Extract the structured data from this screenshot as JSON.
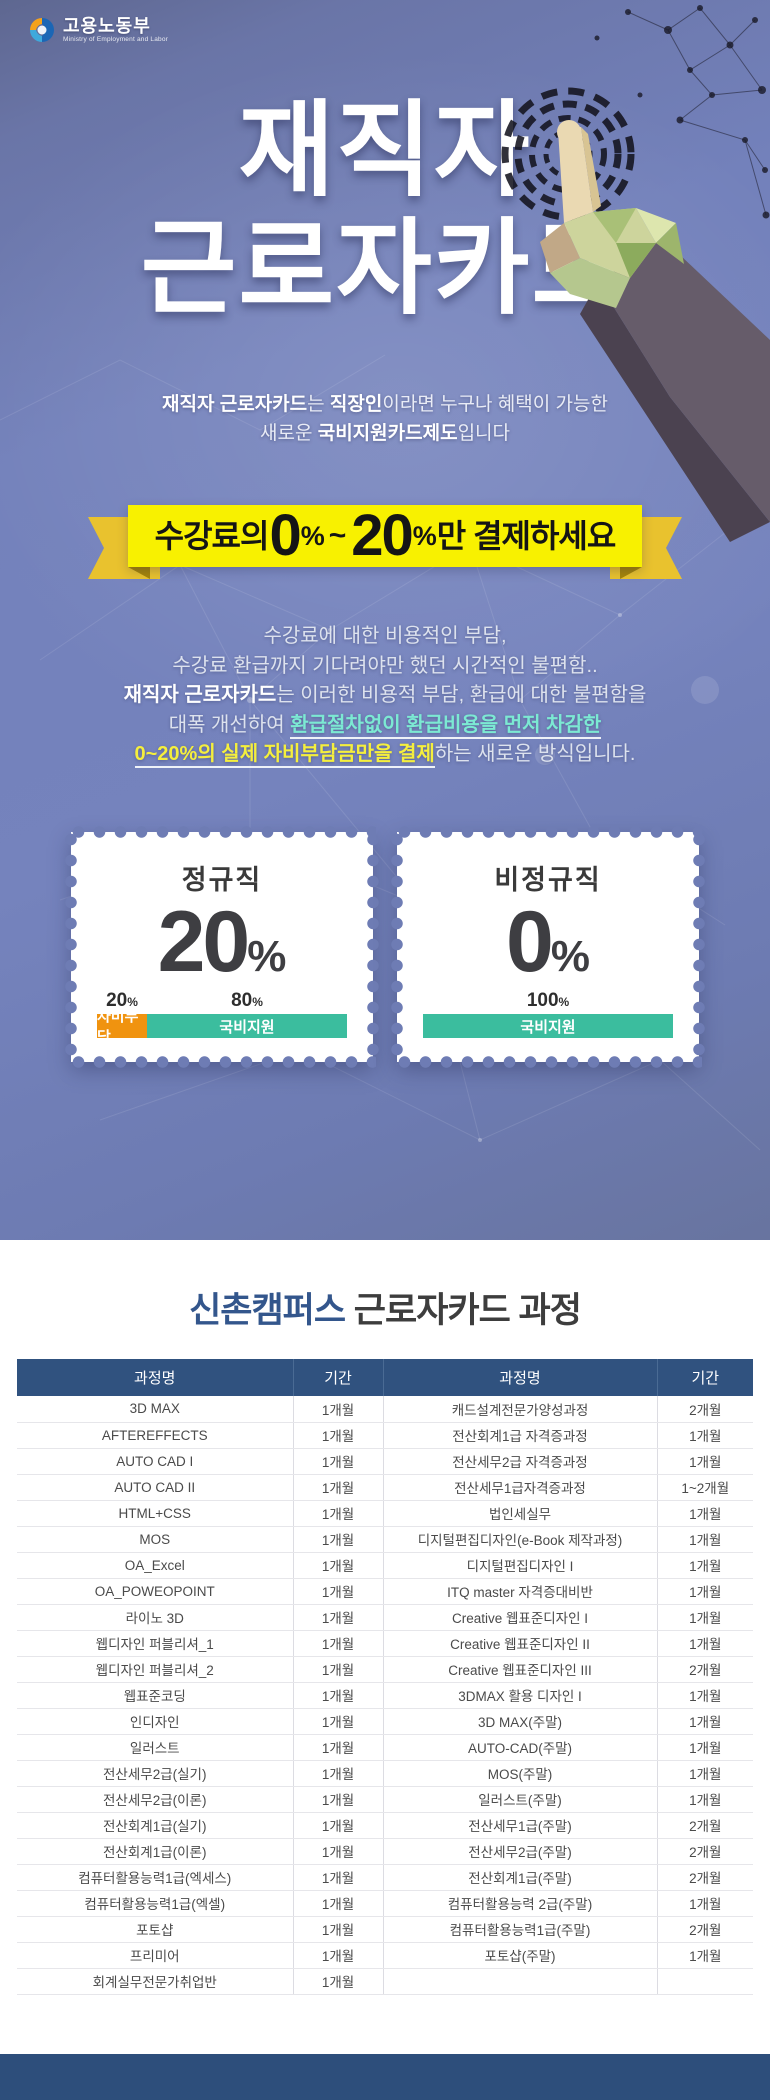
{
  "colors": {
    "hero_blue": "#7381bb",
    "ribbon_yellow": "#f8f100",
    "highlight_teal": "#7ce9d3",
    "highlight_yellow": "#f5ef3d",
    "bar_orange": "#f0930f",
    "bar_teal": "#3bbd9e",
    "table_header_navy": "#30527f",
    "footer_navy": "#2d4e7b"
  },
  "logo": {
    "name": "고용노동부",
    "subtitle": "Ministry of Employment and Labor"
  },
  "hero": {
    "title_line1": "재직자",
    "title_line2": "근로자카드",
    "subtitle": {
      "b1": "재직자 근로자카드",
      "r1": "는 ",
      "b2": "직장인",
      "r2": "이라면 누구나 혜택이 가능한",
      "r3": "새로운 ",
      "b3": "국비지원카드제도",
      "r4": "입니다"
    },
    "ribbon": {
      "pre": "수강료의 ",
      "num1": "0",
      "pct1": "%",
      "tilde": "~",
      "num2": "20",
      "pct2": "%",
      "post": "만 결제하세요"
    },
    "desc": {
      "line1": "수강료에 대한 비용적인 부담,",
      "line2": "수강료 환급까지 기다려야만 했던 시간적인 불편함..",
      "line3_bold": "재직자 근로자카드",
      "line3_rest": "는 이러한 비용적 부담, 환급에 대한 불편함을",
      "line4_pre": "대폭 개선하여 ",
      "line4_teal": "환급절차없이 환급비용을 먼저 차감한",
      "line5_yellow": "0~20%의 실제 자비부담금만을 결제",
      "line5_rest": "하는 새로운 방식입니다."
    },
    "stamp_left": {
      "title": "정규직",
      "value": "20",
      "unit": "%",
      "label1": "20",
      "label1_unit": "%",
      "label2": "80",
      "label2_unit": "%",
      "seg1": "자비부담",
      "seg2": "국비지원"
    },
    "stamp_right": {
      "title": "비정규직",
      "value": "0",
      "unit": "%",
      "label1": "100",
      "label1_unit": "%",
      "seg1": "국비지원"
    }
  },
  "courses": {
    "title_campus": "신촌캠퍼스",
    "title_rest": " 근로자카드 과정",
    "table": {
      "headers": [
        "과정명",
        "기간",
        "과정명",
        "기간"
      ],
      "rows": [
        [
          "3D MAX",
          "1개월",
          "캐드설계전문가양성과정",
          "2개월"
        ],
        [
          "AFTEREFFECTS",
          "1개월",
          "전산회계1급 자격증과정",
          "1개월"
        ],
        [
          "AUTO CAD I",
          "1개월",
          "전산세무2급 자격증과정",
          "1개월"
        ],
        [
          "AUTO CAD II",
          "1개월",
          "전산세무1급자격증과정",
          "1~2개월"
        ],
        [
          "HTML+CSS",
          "1개월",
          "법인세실무",
          "1개월"
        ],
        [
          "MOS",
          "1개월",
          "디지털편집디자인(e-Book 제작과정)",
          "1개월"
        ],
        [
          "OA_Excel",
          "1개월",
          "디지털편집디자인 I",
          "1개월"
        ],
        [
          "OA_POWEOPOINT",
          "1개월",
          "ITQ master 자격증대비반",
          "1개월"
        ],
        [
          "라이노 3D",
          "1개월",
          "Creative 웹표준디자인 I",
          "1개월"
        ],
        [
          "웹디자인 퍼블리셔_1",
          "1개월",
          "Creative 웹표준디자인 II",
          "1개월"
        ],
        [
          "웹디자인 퍼블리셔_2",
          "1개월",
          "Creative 웹표준디자인 III",
          "2개월"
        ],
        [
          "웹표준코딩",
          "1개월",
          "3DMAX 활용 디자인 I",
          "1개월"
        ],
        [
          "인디자인",
          "1개월",
          "3D MAX(주말)",
          "1개월"
        ],
        [
          "일러스트",
          "1개월",
          "AUTO-CAD(주말)",
          "1개월"
        ],
        [
          "전산세무2급(실기)",
          "1개월",
          "MOS(주말)",
          "1개월"
        ],
        [
          "전산세무2급(이론)",
          "1개월",
          "일러스트(주말)",
          "1개월"
        ],
        [
          "전산회계1급(실기)",
          "1개월",
          "전산세무1급(주말)",
          "2개월"
        ],
        [
          "전산회계1급(이론)",
          "1개월",
          "전산세무2급(주말)",
          "2개월"
        ],
        [
          "컴퓨터활용능력1급(엑세스)",
          "1개월",
          "전산회계1급(주말)",
          "2개월"
        ],
        [
          "컴퓨터활용능력1급(엑셀)",
          "1개월",
          "컴퓨터활용능력 2급(주말)",
          "1개월"
        ],
        [
          "포토샵",
          "1개월",
          "컴퓨터활용능력1급(주말)",
          "2개월"
        ],
        [
          "프리미어",
          "1개월",
          "포토샵(주말)",
          "1개월"
        ],
        [
          "회계실무전문가취업반",
          "1개월",
          "",
          ""
        ]
      ]
    }
  }
}
